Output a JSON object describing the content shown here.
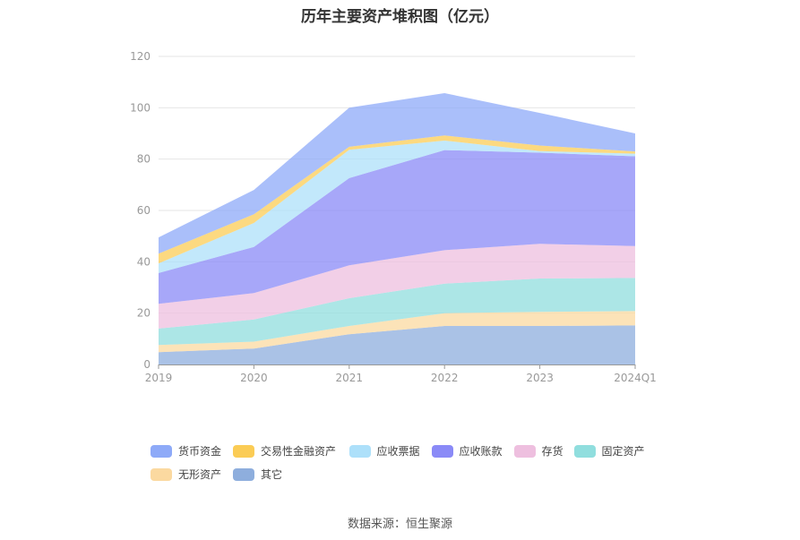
{
  "chart_data": {
    "type": "area",
    "stacked": true,
    "title": "历年主要资产堆积图（亿元）",
    "categories": [
      "2019",
      "2020",
      "2021",
      "2022",
      "2023",
      "2024Q1"
    ],
    "ylim": [
      0,
      120
    ],
    "yticks": [
      0,
      20,
      40,
      60,
      80,
      100,
      120
    ],
    "grid": true,
    "legend_position": "bottom",
    "series": [
      {
        "name": "其它",
        "color": "#8eaedd",
        "values": [
          4.8,
          6.2,
          11.8,
          15.0,
          15.0,
          15.2
        ]
      },
      {
        "name": "无形资产",
        "color": "#fbd9a0",
        "values": [
          2.8,
          2.7,
          3.2,
          5.0,
          5.5,
          5.6
        ]
      },
      {
        "name": "固定资产",
        "color": "#90dede",
        "values": [
          6.4,
          8.6,
          10.8,
          11.5,
          13.0,
          12.9
        ]
      },
      {
        "name": "存货",
        "color": "#eebfdf",
        "values": [
          9.6,
          10.3,
          12.8,
          13.0,
          13.5,
          12.4
        ]
      },
      {
        "name": "应收账款",
        "color": "#8a8af7",
        "values": [
          12.0,
          18.0,
          34.0,
          39.0,
          35.5,
          35.0
        ]
      },
      {
        "name": "应收票据",
        "color": "#ade0fa",
        "values": [
          3.8,
          9.3,
          11.0,
          3.7,
          0.6,
          1.0
        ]
      },
      {
        "name": "交易性金融资产",
        "color": "#fbcc55",
        "values": [
          3.8,
          3.4,
          1.2,
          2.0,
          2.2,
          0.9
        ]
      },
      {
        "name": "货币资金",
        "color": "#8eaaf8",
        "values": [
          6.3,
          9.5,
          15.2,
          16.5,
          12.7,
          7.0
        ]
      }
    ],
    "legend_order": [
      "货币资金",
      "交易性金融资产",
      "应收票据",
      "应收账款",
      "存货",
      "固定资产",
      "无形资产",
      "其它"
    ]
  },
  "source_text": "数据来源：恒生聚源"
}
